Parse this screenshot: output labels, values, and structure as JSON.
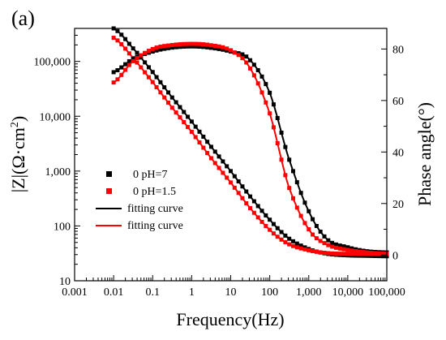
{
  "panel_label": "(a)",
  "colors": {
    "ph7": "#000000",
    "ph1_5": "#ff0000"
  },
  "chart_data": {
    "type": "scatter",
    "xlabel": "Frequency(Hz)",
    "ylabel_left": "|Z|(Ω·cm²)",
    "ylabel_left_main": "|Z|(Ω·cm",
    "ylabel_left_sup": "2",
    "ylabel_left_end": ")",
    "ylabel_right": "Phase angle(°)",
    "x_scale": "log",
    "xlim": [
      0.001,
      100000
    ],
    "y_left_scale": "log",
    "y_left_lim": [
      10,
      400000
    ],
    "y_right_lim": [
      -10,
      88
    ],
    "x_ticks": [
      "0.001",
      "0.01",
      "0.1",
      "1",
      "10",
      "100",
      "1,000",
      "10,000",
      "100,000"
    ],
    "y_left_ticks": [
      "10",
      "100",
      "1,000",
      "10,000",
      "100,000"
    ],
    "y_right_ticks": [
      "0",
      "20",
      "40",
      "60",
      "80"
    ],
    "legend": [
      {
        "label": "0 pH=7",
        "kind": "marker",
        "color": "#000000"
      },
      {
        "label": "0 pH=1.5",
        "kind": "marker",
        "color": "#ff0000"
      },
      {
        "label": "fitting curve",
        "kind": "line",
        "color": "#000000"
      },
      {
        "label": "fitting curve",
        "kind": "line",
        "color": "#ff0000"
      }
    ],
    "series": [
      {
        "name": "0 pH=7",
        "axis": "left",
        "color": "#000000",
        "x": [
          0.01,
          0.03,
          0.1,
          0.3,
          1,
          3,
          10,
          30,
          100,
          300,
          1000,
          3000,
          10000,
          30000,
          100000
        ],
        "y": [
          400000,
          180000,
          64000,
          23000,
          8000,
          2900,
          1000,
          360,
          130,
          60,
          38,
          31,
          29,
          28.5,
          28
        ]
      },
      {
        "name": "0 pH=1.5",
        "axis": "left",
        "color": "#ff0000",
        "x": [
          0.01,
          0.03,
          0.1,
          0.3,
          1,
          3,
          10,
          30,
          100,
          300,
          1000,
          3000,
          10000,
          30000,
          100000
        ],
        "y": [
          270000,
          120000,
          42000,
          15000,
          5200,
          1800,
          620,
          220,
          85,
          47,
          36,
          32,
          31,
          31,
          31
        ]
      },
      {
        "name": "0 pH=7",
        "axis": "right",
        "color": "#000000",
        "x": [
          0.01,
          0.03,
          0.1,
          0.3,
          1,
          3,
          10,
          30,
          100,
          300,
          1000,
          3000,
          10000,
          30000,
          100000
        ],
        "y": [
          71,
          76,
          79,
          80.5,
          81,
          80.5,
          79,
          76,
          63,
          38,
          17,
          6,
          3,
          1.5,
          1
        ]
      },
      {
        "name": "0 pH=1.5",
        "axis": "right",
        "color": "#ff0000",
        "x": [
          0.01,
          0.03,
          0.1,
          0.3,
          1,
          3,
          10,
          30,
          100,
          300,
          1000,
          3000,
          10000,
          30000,
          100000
        ],
        "y": [
          67,
          75,
          80,
          81.5,
          82,
          81.5,
          79.5,
          73,
          55,
          27,
          10,
          4,
          2,
          1,
          0.5
        ]
      }
    ]
  }
}
